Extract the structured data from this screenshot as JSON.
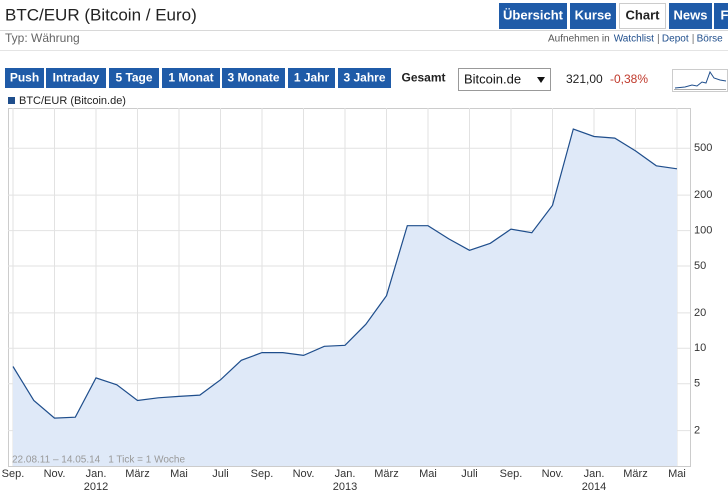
{
  "header": {
    "title": "BTC/EUR (Bitcoin / Euro)",
    "subtitle": "Typ: Währung"
  },
  "nav": {
    "tabs": [
      "Übersicht",
      "Kurse",
      "Chart",
      "News",
      "F"
    ],
    "active": 2
  },
  "watchlist": {
    "prefix": "Aufnehmen in",
    "links": [
      "Watchlist",
      "Depot",
      "Börse"
    ]
  },
  "ranges": {
    "buttons": [
      "Push",
      "Intraday",
      "5 Tage",
      "1 Monat",
      "3 Monate",
      "1 Jahr",
      "3 Jahre",
      "Gesamt"
    ],
    "active": 7
  },
  "quote": {
    "exchange": "Bitcoin.de",
    "price": "321,00",
    "change": "-0,38%"
  },
  "chart_data": {
    "type": "area",
    "period": "22.08.11 – 14.05.14",
    "tick_note": "1 Tick = 1 Woche",
    "x": [
      "2011-09",
      "2011-10",
      "2011-11",
      "2011-12",
      "2012-01",
      "2012-02",
      "2012-03",
      "2012-04",
      "2012-05",
      "2012-06",
      "2012-07",
      "2012-08",
      "2012-09",
      "2012-10",
      "2012-11",
      "2012-12",
      "2013-01",
      "2013-02",
      "2013-03",
      "2013-04",
      "2013-05",
      "2013-06",
      "2013-07",
      "2013-08",
      "2013-09",
      "2013-10",
      "2013-11",
      "2013-12",
      "2014-01",
      "2014-02",
      "2014-03",
      "2014-04",
      "2014-05"
    ],
    "series": [
      {
        "name": "BTC/EUR (Bitcoin.de)",
        "color": "#1f4e8c",
        "values": [
          7,
          3.6,
          2.55,
          2.6,
          5.6,
          4.9,
          3.6,
          3.8,
          3.9,
          4.0,
          5.4,
          7.9,
          9.2,
          9.2,
          8.7,
          10.4,
          10.6,
          16,
          28,
          110,
          110,
          85,
          68,
          78,
          103,
          96,
          164,
          730,
          630,
          610,
          475,
          355,
          335
        ]
      }
    ],
    "fill_color": "#dfe9f8",
    "xlim": [
      "2011-09",
      "2014-05"
    ],
    "xticks": [
      {
        "value": "2011-09",
        "label": "Sep."
      },
      {
        "value": "2011-11",
        "label": "Nov."
      },
      {
        "value": "2012-01",
        "label": "Jan."
      },
      {
        "value": "2012-03",
        "label": "März"
      },
      {
        "value": "2012-05",
        "label": "Mai"
      },
      {
        "value": "2012-07",
        "label": "Juli"
      },
      {
        "value": "2012-09",
        "label": "Sep."
      },
      {
        "value": "2012-11",
        "label": "Nov."
      },
      {
        "value": "2013-01",
        "label": "Jan."
      },
      {
        "value": "2013-03",
        "label": "März"
      },
      {
        "value": "2013-05",
        "label": "Mai"
      },
      {
        "value": "2013-07",
        "label": "Juli"
      },
      {
        "value": "2013-09",
        "label": "Sep."
      },
      {
        "value": "2013-11",
        "label": "Nov."
      },
      {
        "value": "2014-01",
        "label": "Jan."
      },
      {
        "value": "2014-03",
        "label": "März"
      },
      {
        "value": "2014-05",
        "label": "Mai"
      }
    ],
    "year_labels": [
      {
        "value": "2012-01",
        "label": "2012"
      },
      {
        "value": "2013-01",
        "label": "2013"
      },
      {
        "value": "2014-01",
        "label": "2014"
      }
    ],
    "ylim": [
      1,
      1100
    ],
    "yscale": "log",
    "yticks": [
      2,
      5,
      10,
      20,
      50,
      100,
      200,
      500
    ],
    "grid": true
  }
}
